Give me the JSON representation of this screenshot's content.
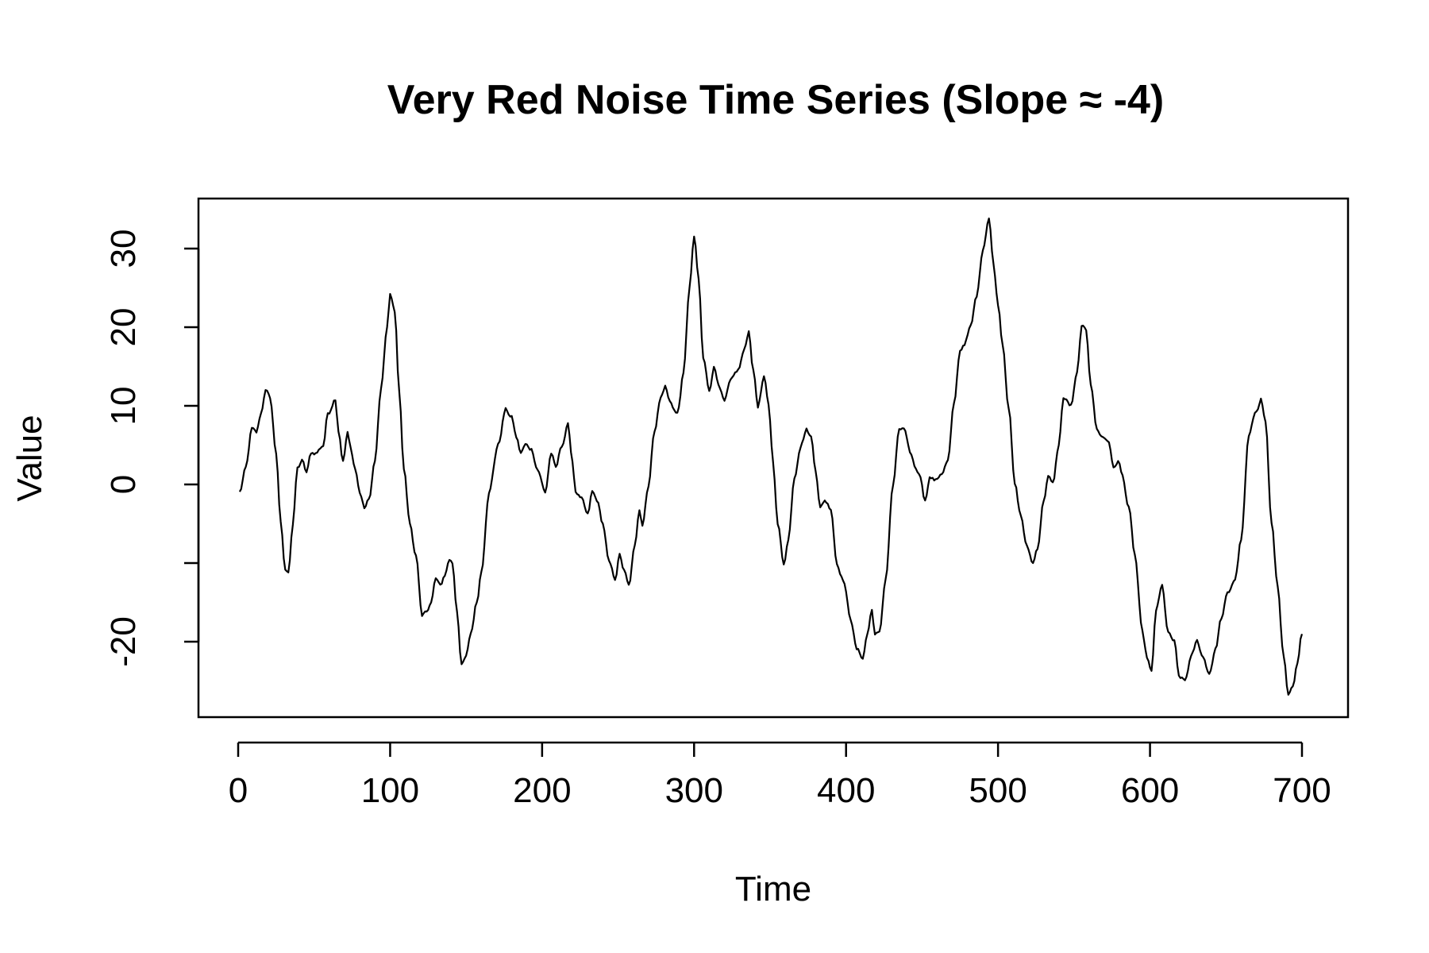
{
  "chart_data": {
    "type": "line",
    "title": "Very Red Noise Time Series (Slope ≈ -4)",
    "xlabel": "Time",
    "ylabel": "Value",
    "xlim": [
      1,
      700
    ],
    "ylim": [
      -30,
      35
    ],
    "x_ticks": [
      0,
      100,
      200,
      300,
      400,
      500,
      600,
      700
    ],
    "x_tick_labels": [
      "0",
      "100",
      "200",
      "300",
      "400",
      "500",
      "600",
      "700"
    ],
    "y_ticks": [
      -20,
      -10,
      0,
      10,
      20,
      30
    ],
    "y_tick_labels": [
      "-20",
      "",
      "0",
      "10",
      "20",
      "30"
    ],
    "grid": false,
    "color": "#000000",
    "keypoints": [
      [
        1,
        -1
      ],
      [
        5,
        2
      ],
      [
        9,
        7
      ],
      [
        12,
        6.5
      ],
      [
        15,
        9
      ],
      [
        18,
        12
      ],
      [
        21,
        11
      ],
      [
        25,
        4
      ],
      [
        28,
        -5
      ],
      [
        31,
        -11
      ],
      [
        33,
        -11
      ],
      [
        36,
        -5
      ],
      [
        39,
        2
      ],
      [
        42,
        3
      ],
      [
        45,
        1.5
      ],
      [
        48,
        4
      ],
      [
        51,
        4
      ],
      [
        56,
        5
      ],
      [
        59,
        9
      ],
      [
        64,
        11
      ],
      [
        66,
        7
      ],
      [
        69,
        3
      ],
      [
        72,
        6.5
      ],
      [
        74,
        4.5
      ],
      [
        77,
        2
      ],
      [
        80,
        -1
      ],
      [
        83,
        -3
      ],
      [
        86,
        -2
      ],
      [
        90,
        3
      ],
      [
        94,
        12
      ],
      [
        98,
        20
      ],
      [
        100,
        24
      ],
      [
        103,
        22
      ],
      [
        106,
        12
      ],
      [
        109,
        2
      ],
      [
        113,
        -5
      ],
      [
        117,
        -9
      ],
      [
        121,
        -17
      ],
      [
        124,
        -16
      ],
      [
        127,
        -15
      ],
      [
        130,
        -12
      ],
      [
        133,
        -13
      ],
      [
        136,
        -11.5
      ],
      [
        139,
        -9.5
      ],
      [
        141,
        -10
      ],
      [
        144,
        -16
      ],
      [
        147,
        -23
      ],
      [
        150,
        -22
      ],
      [
        153,
        -19
      ],
      [
        157,
        -15
      ],
      [
        160,
        -11
      ],
      [
        165,
        -1
      ],
      [
        171,
        5
      ],
      [
        176,
        9.5
      ],
      [
        180,
        8.5
      ],
      [
        183,
        6
      ],
      [
        186,
        4
      ],
      [
        189,
        5
      ],
      [
        193,
        4.5
      ],
      [
        197,
        2
      ],
      [
        202,
        -1
      ],
      [
        206,
        4
      ],
      [
        209,
        2
      ],
      [
        213,
        5
      ],
      [
        217,
        7.5
      ],
      [
        220,
        3
      ],
      [
        222,
        -1
      ],
      [
        226,
        -2
      ],
      [
        230,
        -4
      ],
      [
        233,
        -1
      ],
      [
        236,
        -2
      ],
      [
        240,
        -5
      ],
      [
        244,
        -10
      ],
      [
        248,
        -12
      ],
      [
        251,
        -9
      ],
      [
        254,
        -11
      ],
      [
        257,
        -13
      ],
      [
        261,
        -8
      ],
      [
        264,
        -3
      ],
      [
        266,
        -5
      ],
      [
        270,
        0
      ],
      [
        274,
        7
      ],
      [
        278,
        11
      ],
      [
        281,
        12.5
      ],
      [
        284,
        10.5
      ],
      [
        289,
        9
      ],
      [
        293,
        14
      ],
      [
        297,
        25
      ],
      [
        300,
        31.5
      ],
      [
        303,
        26
      ],
      [
        306,
        16
      ],
      [
        310,
        12
      ],
      [
        313,
        15
      ],
      [
        316,
        13
      ],
      [
        320,
        10.5
      ],
      [
        324,
        13
      ],
      [
        329,
        14.5
      ],
      [
        333,
        17
      ],
      [
        336,
        19.5
      ],
      [
        339,
        14.5
      ],
      [
        342,
        10
      ],
      [
        346,
        13.5
      ],
      [
        349,
        10
      ],
      [
        352,
        3
      ],
      [
        355,
        -5
      ],
      [
        359,
        -10
      ],
      [
        362,
        -7
      ],
      [
        366,
        1
      ],
      [
        370,
        5
      ],
      [
        374,
        7
      ],
      [
        377,
        6
      ],
      [
        380,
        2
      ],
      [
        383,
        -3
      ],
      [
        386,
        -2
      ],
      [
        390,
        -3
      ],
      [
        394,
        -10
      ],
      [
        398,
        -12
      ],
      [
        403,
        -17
      ],
      [
        407,
        -21
      ],
      [
        411,
        -22
      ],
      [
        414,
        -19
      ],
      [
        417,
        -16
      ],
      [
        419,
        -19
      ],
      [
        422,
        -19
      ],
      [
        426,
        -12
      ],
      [
        431,
        0
      ],
      [
        435,
        7
      ],
      [
        438,
        7
      ],
      [
        442,
        4
      ],
      [
        446,
        2
      ],
      [
        449,
        1
      ],
      [
        452,
        -2
      ],
      [
        455,
        1
      ],
      [
        459,
        0.5
      ],
      [
        463,
        1.5
      ],
      [
        467,
        3
      ],
      [
        471,
        10
      ],
      [
        475,
        17
      ],
      [
        478,
        18
      ],
      [
        482,
        20
      ],
      [
        486,
        24
      ],
      [
        490,
        30
      ],
      [
        494,
        34
      ],
      [
        497,
        28
      ],
      [
        500,
        23
      ],
      [
        503,
        18
      ],
      [
        507,
        10
      ],
      [
        511,
        0
      ],
      [
        515,
        -4
      ],
      [
        519,
        -8
      ],
      [
        523,
        -10
      ],
      [
        526,
        -8
      ],
      [
        530,
        -2
      ],
      [
        533,
        1
      ],
      [
        536,
        0
      ],
      [
        540,
        5
      ],
      [
        543,
        11
      ],
      [
        548,
        10
      ],
      [
        552,
        14
      ],
      [
        555,
        20
      ],
      [
        558,
        19.5
      ],
      [
        561,
        13
      ],
      [
        565,
        7
      ],
      [
        569,
        6
      ],
      [
        573,
        5.5
      ],
      [
        576,
        2
      ],
      [
        579,
        3
      ],
      [
        582,
        1
      ],
      [
        586,
        -3
      ],
      [
        590,
        -9
      ],
      [
        595,
        -19
      ],
      [
        598,
        -22
      ],
      [
        601,
        -24
      ],
      [
        604,
        -16
      ],
      [
        608,
        -13
      ],
      [
        612,
        -19
      ],
      [
        616,
        -20
      ],
      [
        619,
        -24.5
      ],
      [
        623,
        -25
      ],
      [
        627,
        -22
      ],
      [
        631,
        -20
      ],
      [
        635,
        -22
      ],
      [
        639,
        -24
      ],
      [
        643,
        -21
      ],
      [
        647,
        -17
      ],
      [
        651,
        -14
      ],
      [
        656,
        -12
      ],
      [
        660,
        -7
      ],
      [
        665,
        6
      ],
      [
        670,
        9.5
      ],
      [
        673,
        11
      ],
      [
        676,
        8
      ],
      [
        680,
        -5
      ],
      [
        684,
        -13
      ],
      [
        688,
        -22
      ],
      [
        691,
        -27
      ],
      [
        694,
        -26
      ],
      [
        697,
        -23
      ],
      [
        700,
        -19
      ]
    ]
  }
}
